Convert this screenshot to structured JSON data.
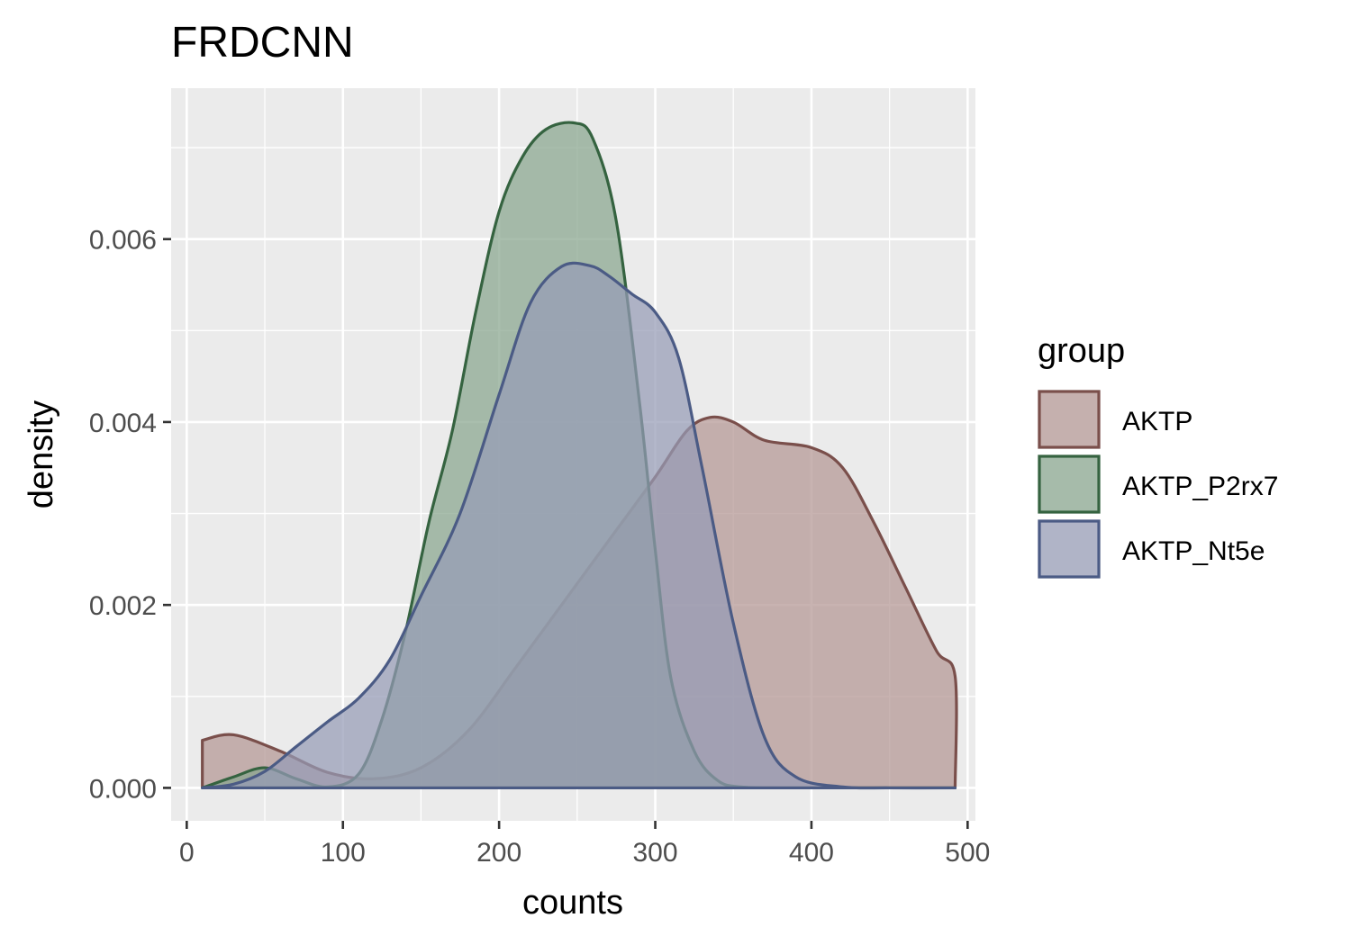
{
  "chart_data": {
    "type": "area",
    "subtype": "density",
    "title": "FRDCNN",
    "xlabel": "counts",
    "ylabel": "density",
    "xlim": [
      -10,
      505
    ],
    "ylim": [
      -0.00036,
      0.00765
    ],
    "x_ticks": [
      0,
      100,
      200,
      300,
      400,
      500
    ],
    "x_tick_labels": [
      "0",
      "100",
      "200",
      "300",
      "400",
      "500"
    ],
    "y_ticks": [
      0,
      0.002,
      0.004,
      0.006
    ],
    "y_tick_labels": [
      "0.000",
      "0.002",
      "0.004",
      "0.006"
    ],
    "grid": true,
    "legend": {
      "title": "group",
      "position": "right"
    },
    "series": [
      {
        "name": "AKTP",
        "fill": "#B39693",
        "stroke": "#7A4F4B",
        "x": [
          10,
          30,
          60,
          90,
          120,
          150,
          180,
          210,
          240,
          270,
          300,
          320,
          335,
          350,
          370,
          400,
          420,
          440,
          460,
          480,
          492,
          492
        ],
        "y": [
          0.00052,
          0.00058,
          0.0004,
          0.00017,
          0.0001,
          0.00022,
          0.00062,
          0.0013,
          0.002,
          0.0027,
          0.0034,
          0.0039,
          0.00405,
          0.004,
          0.0038,
          0.00372,
          0.0035,
          0.0029,
          0.0022,
          0.0015,
          0.00122,
          0.0
        ]
      },
      {
        "name": "AKTP_P2rx7",
        "fill": "#88A58D",
        "stroke": "#356340",
        "x": [
          10,
          30,
          50,
          70,
          90,
          110,
          125,
          140,
          155,
          170,
          185,
          200,
          215,
          230,
          248,
          260,
          275,
          290,
          300,
          310,
          325,
          340,
          355,
          380,
          420,
          460,
          492
        ],
        "y": [
          0.0,
          0.00012,
          0.00022,
          0.0001,
          1e-05,
          0.00015,
          0.00075,
          0.0017,
          0.0029,
          0.0039,
          0.0052,
          0.0063,
          0.0069,
          0.0072,
          0.00727,
          0.0071,
          0.0062,
          0.0042,
          0.0026,
          0.0012,
          0.0004,
          8e-05,
          1e-05,
          0.0,
          0.0,
          0.0,
          0.0
        ]
      },
      {
        "name": "AKTP_Nt5e",
        "fill": "#959BB5",
        "stroke": "#4B5B85",
        "x": [
          10,
          30,
          50,
          70,
          90,
          110,
          130,
          150,
          175,
          200,
          220,
          240,
          258,
          270,
          285,
          300,
          315,
          330,
          350,
          370,
          390,
          420,
          450,
          492
        ],
        "y": [
          0.0,
          4e-05,
          0.00018,
          0.00045,
          0.00072,
          0.00098,
          0.0014,
          0.0021,
          0.003,
          0.0043,
          0.0053,
          0.0057,
          0.00571,
          0.0056,
          0.0054,
          0.0052,
          0.0047,
          0.0035,
          0.0018,
          0.00055,
          0.00012,
          1e-05,
          0.0,
          0.0
        ]
      }
    ]
  }
}
